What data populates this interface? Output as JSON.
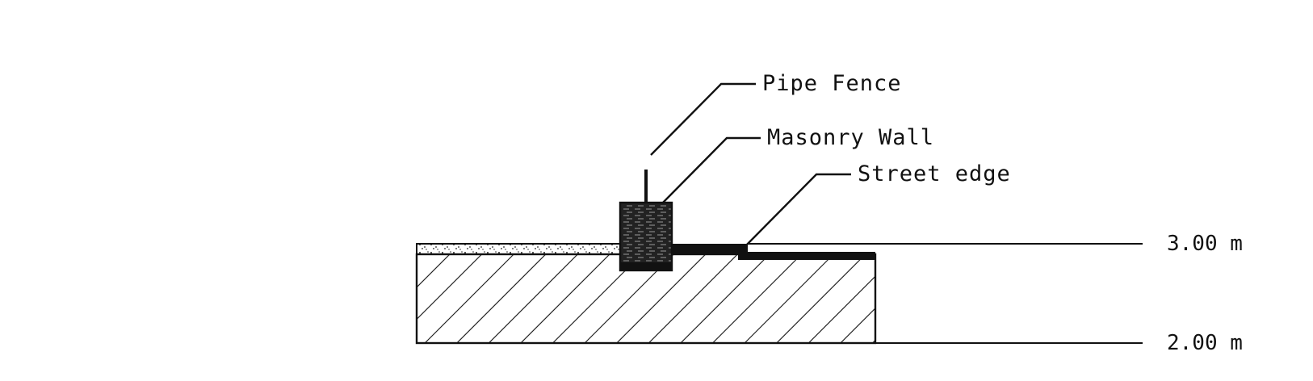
{
  "labels": {
    "pipe_fence": "Pipe Fence",
    "masonry_wall": "Masonry Wall",
    "street_edge": "Street edge"
  },
  "levels": {
    "top": "3.00 m",
    "bottom": "2.00 m"
  },
  "colors": {
    "ink": "#111111",
    "background": "#ffffff"
  }
}
